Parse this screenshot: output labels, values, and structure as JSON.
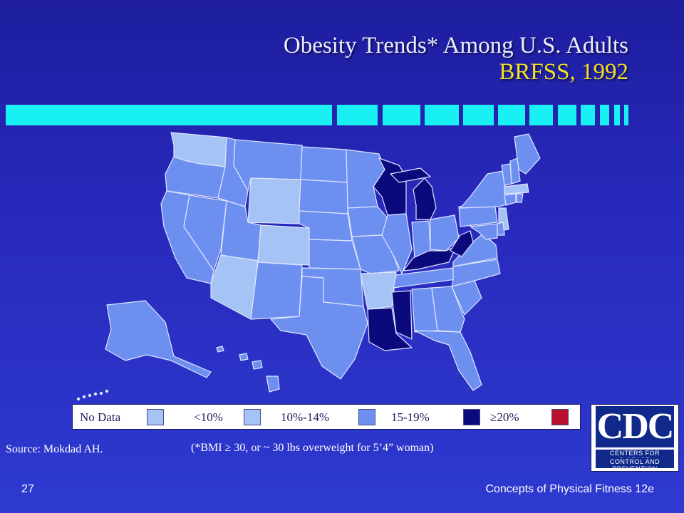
{
  "title": {
    "line1": "Obesity Trends* Among U.S. Adults",
    "line2": "BRFSS, 1992"
  },
  "colors": {
    "background": "#2424b0",
    "title_line2": "#f2df26",
    "bars": "#19f0f4",
    "no_data": "#ffffff",
    "lt10": "#adc9f3",
    "r10_14": "#8ea9ec",
    "r15_19": "#0a0a7c",
    "ge20": "#b80f2c"
  },
  "legend": {
    "items": [
      {
        "label": "No Data",
        "color": "#a5c3f4"
      },
      {
        "label": "<10%",
        "color": "#a5c3f4"
      },
      {
        "label": "10%-14%",
        "color": "#6d8ff0"
      },
      {
        "label": "15-19%",
        "color": "#0a0a7c"
      },
      {
        "label": "≥20%",
        "color": "#b80f2c"
      }
    ]
  },
  "map_data": {
    "year": 1992,
    "categories": {
      "lt10": [
        "WA",
        "WY",
        "CO",
        "AZ",
        "AR",
        "NJ",
        "MA"
      ],
      "r10_14": [
        "OR",
        "CA",
        "NV",
        "ID",
        "MT",
        "UT",
        "NM",
        "ND",
        "SD",
        "NE",
        "KS",
        "OK",
        "TX",
        "MN",
        "IA",
        "MO",
        "IL",
        "IN",
        "OH",
        "PA",
        "NY",
        "VT",
        "NH",
        "ME",
        "CT",
        "RI",
        "DE",
        "MD",
        "VA",
        "NC",
        "SC",
        "GA",
        "FL",
        "AL",
        "TN",
        "AK",
        "HI"
      ],
      "r15_19": [
        "WI",
        "MI",
        "KY",
        "WV",
        "LA",
        "MS"
      ],
      "ge20": []
    }
  },
  "source": "Source: Mokdad AH.",
  "footnote": "(*BMI ≥ 30, or ~ 30 lbs overweight for 5’4” woman)",
  "footer": {
    "page_number": "27",
    "book": "Concepts of Physical Fitness 12e"
  },
  "logo": {
    "abbr": "CDC",
    "line1": "CENTERS FOR DISEASE",
    "line2": "CONTROL AND PREVENTION"
  }
}
